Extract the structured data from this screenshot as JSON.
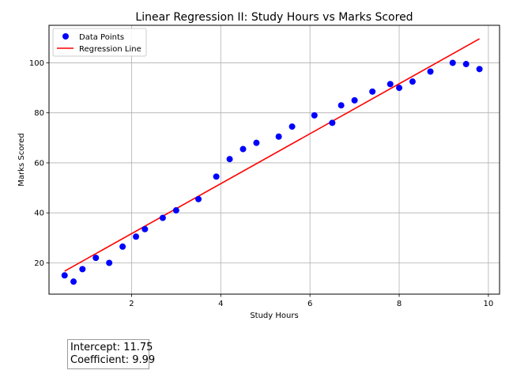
{
  "chart_data": {
    "type": "scatter",
    "title": "Linear Regression II: Study Hours vs Marks Scored",
    "xlabel": "Study Hours",
    "ylabel": "Marks Scored",
    "xlim": [
      0.15,
      10.25
    ],
    "ylim": [
      7.5,
      115
    ],
    "xticks": [
      2,
      4,
      6,
      8,
      10
    ],
    "yticks": [
      20,
      40,
      60,
      80,
      100
    ],
    "grid": true,
    "legend_position": "top-left",
    "series": [
      {
        "name": "Data Points",
        "kind": "scatter",
        "color": "#0000ff",
        "points": [
          [
            0.5,
            15
          ],
          [
            0.7,
            12.5
          ],
          [
            0.9,
            17.5
          ],
          [
            1.2,
            22
          ],
          [
            1.5,
            20
          ],
          [
            1.8,
            26.5
          ],
          [
            2.1,
            30.5
          ],
          [
            2.3,
            33.5
          ],
          [
            2.7,
            38
          ],
          [
            3.0,
            41
          ],
          [
            3.5,
            45.5
          ],
          [
            3.9,
            54.5
          ],
          [
            4.2,
            61.5
          ],
          [
            4.5,
            65.5
          ],
          [
            4.8,
            68
          ],
          [
            5.3,
            70.5
          ],
          [
            5.6,
            74.5
          ],
          [
            6.1,
            79
          ],
          [
            6.5,
            76
          ],
          [
            6.7,
            83
          ],
          [
            7.0,
            85
          ],
          [
            7.4,
            88.5
          ],
          [
            7.8,
            91.5
          ],
          [
            8.0,
            90
          ],
          [
            8.3,
            92.5
          ],
          [
            8.7,
            96.5
          ],
          [
            9.2,
            100
          ],
          [
            9.5,
            99.5
          ],
          [
            9.8,
            97.5
          ]
        ]
      },
      {
        "name": "Regression Line",
        "kind": "line",
        "color": "#ff0000",
        "points": [
          [
            0.5,
            16.7
          ],
          [
            9.8,
            109.6
          ]
        ]
      }
    ]
  },
  "stats": {
    "intercept": "Intercept: 11.75",
    "coefficient": "Coefficient: 9.99"
  }
}
